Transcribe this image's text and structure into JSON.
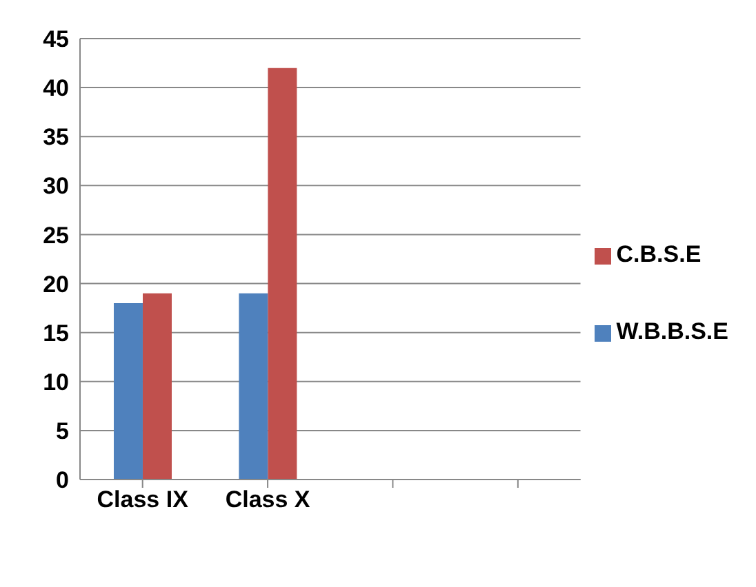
{
  "chart_data": {
    "type": "bar",
    "categories": [
      "Class IX",
      "Class X",
      null,
      null
    ],
    "series": [
      {
        "name": "W.B.B.S.E",
        "color": "#4f81bd",
        "values": [
          18,
          19,
          null,
          null
        ]
      },
      {
        "name": "C.B.S.E",
        "color": "#c0504d",
        "values": [
          19,
          42,
          null,
          null
        ]
      }
    ],
    "ylim": [
      0,
      45
    ],
    "yticks": [
      0,
      5,
      10,
      15,
      20,
      25,
      30,
      35,
      40,
      45
    ],
    "grid": "y",
    "legend": "right"
  }
}
